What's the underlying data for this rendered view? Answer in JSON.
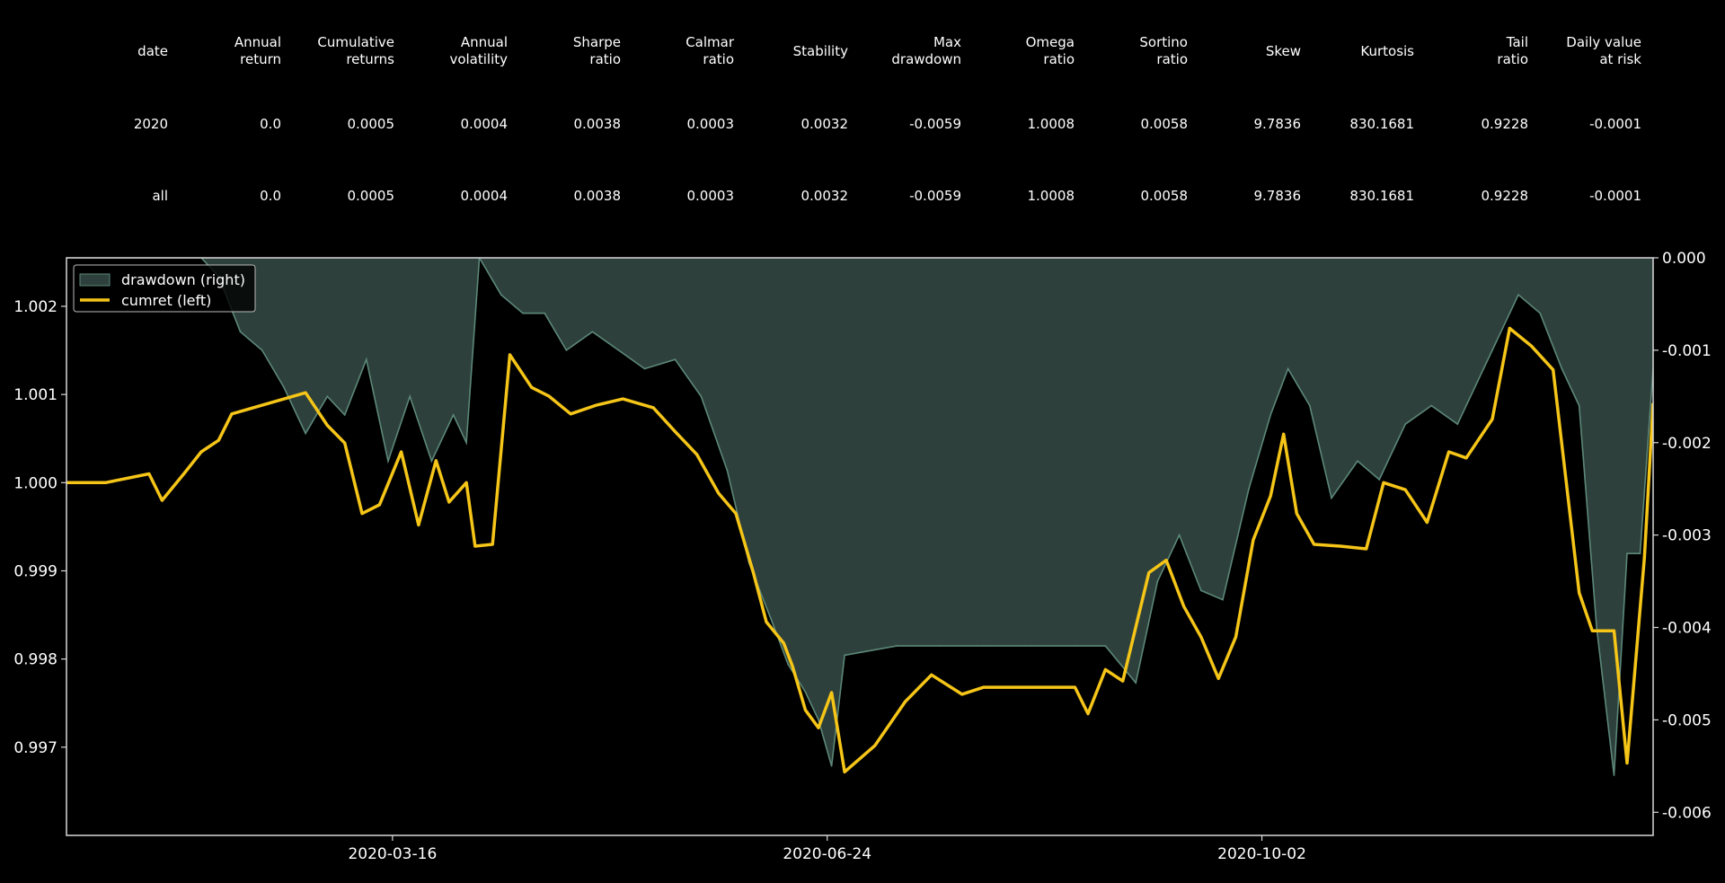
{
  "stats_table": {
    "columns": [
      "date",
      "Annual\nreturn",
      "Cumulative\nreturns",
      "Annual\nvolatility",
      "Sharpe\nratio",
      "Calmar\nratio",
      "Stability",
      "Max\ndrawdown",
      "Omega\nratio",
      "Sortino\nratio",
      "Skew",
      "Kurtosis",
      "Tail\nratio",
      "Daily value\nat risk"
    ],
    "rows": [
      [
        "2020",
        "0.0",
        "0.0005",
        "0.0004",
        "0.0038",
        "0.0003",
        "0.0032",
        "-0.0059",
        "1.0008",
        "0.0058",
        "9.7836",
        "830.1681",
        "0.9228",
        "-0.0001"
      ],
      [
        "all",
        "0.0",
        "0.0005",
        "0.0004",
        "0.0038",
        "0.0003",
        "0.0032",
        "-0.0059",
        "1.0008",
        "0.0058",
        "9.7836",
        "830.1681",
        "0.9228",
        "-0.0001"
      ]
    ]
  },
  "chart_data": {
    "type": "line",
    "x_ticks": [
      "2020-03-16",
      "2020-06-24",
      "2020-10-02"
    ],
    "xlim": [
      "2020-01-01",
      "2020-12-31"
    ],
    "left_axis": {
      "ylim": [
        0.996,
        1.00255
      ],
      "ticks": [
        "0.997",
        "0.998",
        "0.999",
        "1.000",
        "1.001",
        "1.002"
      ]
    },
    "right_axis": {
      "ylim": [
        -0.00625,
        0.0
      ],
      "ticks": [
        "-0.006",
        "-0.005",
        "-0.004",
        "-0.003",
        "-0.002",
        "-0.001",
        "0.000"
      ]
    },
    "legend": {
      "position": "top-left",
      "entries": [
        "drawdown (right)",
        "cumret (left)"
      ]
    },
    "colors": {
      "cumret": "#f5c518",
      "drawdown_fill": "#2e403c",
      "drawdown_line": "#5c8878",
      "axes": "#d8d8d8"
    },
    "series": [
      {
        "name": "cumret (left)",
        "axis": "left",
        "x": [
          "2020-01-01",
          "2020-01-10",
          "2020-01-20",
          "2020-01-23",
          "2020-01-28",
          "2020-02-01",
          "2020-02-05",
          "2020-02-08",
          "2020-02-25",
          "2020-03-01",
          "2020-03-05",
          "2020-03-09",
          "2020-03-13",
          "2020-03-18",
          "2020-03-22",
          "2020-03-26",
          "2020-03-29",
          "2020-04-02",
          "2020-04-04",
          "2020-04-08",
          "2020-04-12",
          "2020-04-17",
          "2020-04-21",
          "2020-04-26",
          "2020-05-02",
          "2020-05-08",
          "2020-05-15",
          "2020-05-20",
          "2020-05-25",
          "2020-05-30",
          "2020-06-03",
          "2020-06-07",
          "2020-06-10",
          "2020-06-14",
          "2020-06-16",
          "2020-06-19",
          "2020-06-22",
          "2020-06-25",
          "2020-06-28",
          "2020-07-05",
          "2020-07-12",
          "2020-07-18",
          "2020-07-25",
          "2020-07-30",
          "2020-08-06",
          "2020-08-13",
          "2020-08-20",
          "2020-08-23",
          "2020-08-27",
          "2020-08-31",
          "2020-09-06",
          "2020-09-10",
          "2020-09-14",
          "2020-09-18",
          "2020-09-22",
          "2020-09-26",
          "2020-09-30",
          "2020-10-04",
          "2020-10-07",
          "2020-10-10",
          "2020-10-14",
          "2020-10-20",
          "2020-10-26",
          "2020-10-30",
          "2020-11-04",
          "2020-11-09",
          "2020-11-14",
          "2020-11-18",
          "2020-11-24",
          "2020-11-28",
          "2020-12-03",
          "2020-12-08",
          "2020-12-14",
          "2020-12-17",
          "2020-12-22",
          "2020-12-25",
          "2020-12-29",
          "2020-12-31"
        ],
        "values": [
          1.0,
          1.0,
          1.0001,
          0.9998,
          1.0001,
          1.00035,
          1.00048,
          1.00078,
          1.00102,
          1.00065,
          1.00045,
          0.99965,
          0.99975,
          1.00035,
          0.99952,
          1.00025,
          0.99978,
          1.0,
          0.99928,
          0.9993,
          1.00145,
          1.00108,
          1.00098,
          1.00078,
          1.00088,
          1.00095,
          1.00085,
          1.00058,
          1.00032,
          0.99988,
          0.99965,
          0.99898,
          0.99842,
          0.99818,
          0.99792,
          0.99742,
          0.99722,
          0.99762,
          0.99672,
          0.99702,
          0.99752,
          0.99782,
          0.9976,
          0.99768,
          0.99768,
          0.99768,
          0.99768,
          0.99738,
          0.99788,
          0.99775,
          0.99898,
          0.99912,
          0.9986,
          0.99825,
          0.99778,
          0.99825,
          0.99935,
          0.99985,
          1.00055,
          0.99965,
          0.9993,
          0.99928,
          0.99925,
          1.0,
          0.99992,
          0.99955,
          1.00035,
          1.00028,
          1.00072,
          1.00175,
          1.00155,
          1.00128,
          0.99875,
          0.99832,
          0.99832,
          0.99682,
          0.99915,
          1.0009
        ]
      },
      {
        "name": "drawdown (right)",
        "axis": "right",
        "x": [
          "2020-01-01",
          "2020-01-15",
          "2020-02-01",
          "2020-02-05",
          "2020-02-10",
          "2020-02-15",
          "2020-02-20",
          "2020-02-25",
          "2020-03-01",
          "2020-03-05",
          "2020-03-10",
          "2020-03-15",
          "2020-03-20",
          "2020-03-25",
          "2020-03-30",
          "2020-04-02",
          "2020-04-05",
          "2020-04-10",
          "2020-04-15",
          "2020-04-20",
          "2020-04-25",
          "2020-05-01",
          "2020-05-07",
          "2020-05-13",
          "2020-05-20",
          "2020-05-26",
          "2020-06-01",
          "2020-06-06",
          "2020-06-11",
          "2020-06-15",
          "2020-06-19",
          "2020-06-22",
          "2020-06-25",
          "2020-06-28",
          "2020-07-10",
          "2020-07-20",
          "2020-07-30",
          "2020-08-10",
          "2020-08-20",
          "2020-08-27",
          "2020-09-03",
          "2020-09-08",
          "2020-09-13",
          "2020-09-18",
          "2020-09-23",
          "2020-09-29",
          "2020-10-04",
          "2020-10-08",
          "2020-10-13",
          "2020-10-18",
          "2020-10-24",
          "2020-10-29",
          "2020-11-04",
          "2020-11-10",
          "2020-11-16",
          "2020-11-22",
          "2020-11-26",
          "2020-11-30",
          "2020-12-05",
          "2020-12-10",
          "2020-12-14",
          "2020-12-18",
          "2020-12-22",
          "2020-12-25",
          "2020-12-28",
          "2020-12-31"
        ],
        "values": [
          0.0,
          0.0,
          0.0,
          -0.0002,
          -0.0008,
          -0.001,
          -0.0014,
          -0.0019,
          -0.0015,
          -0.0017,
          -0.0011,
          -0.0022,
          -0.0015,
          -0.0022,
          -0.0017,
          -0.002,
          0.0,
          -0.0004,
          -0.0006,
          -0.0006,
          -0.001,
          -0.0008,
          -0.001,
          -0.0012,
          -0.0011,
          -0.0015,
          -0.0023,
          -0.0033,
          -0.0039,
          -0.0044,
          -0.0047,
          -0.005,
          -0.0055,
          -0.0043,
          -0.0042,
          -0.0042,
          -0.0042,
          -0.0042,
          -0.0042,
          -0.0042,
          -0.0046,
          -0.0035,
          -0.003,
          -0.0036,
          -0.0037,
          -0.0025,
          -0.0017,
          -0.0012,
          -0.0016,
          -0.0026,
          -0.0022,
          -0.0024,
          -0.0018,
          -0.0016,
          -0.0018,
          -0.0012,
          -0.0008,
          -0.0004,
          -0.0006,
          -0.0012,
          -0.0016,
          -0.004,
          -0.0056,
          -0.0032,
          -0.0032,
          -0.0012
        ]
      }
    ]
  }
}
